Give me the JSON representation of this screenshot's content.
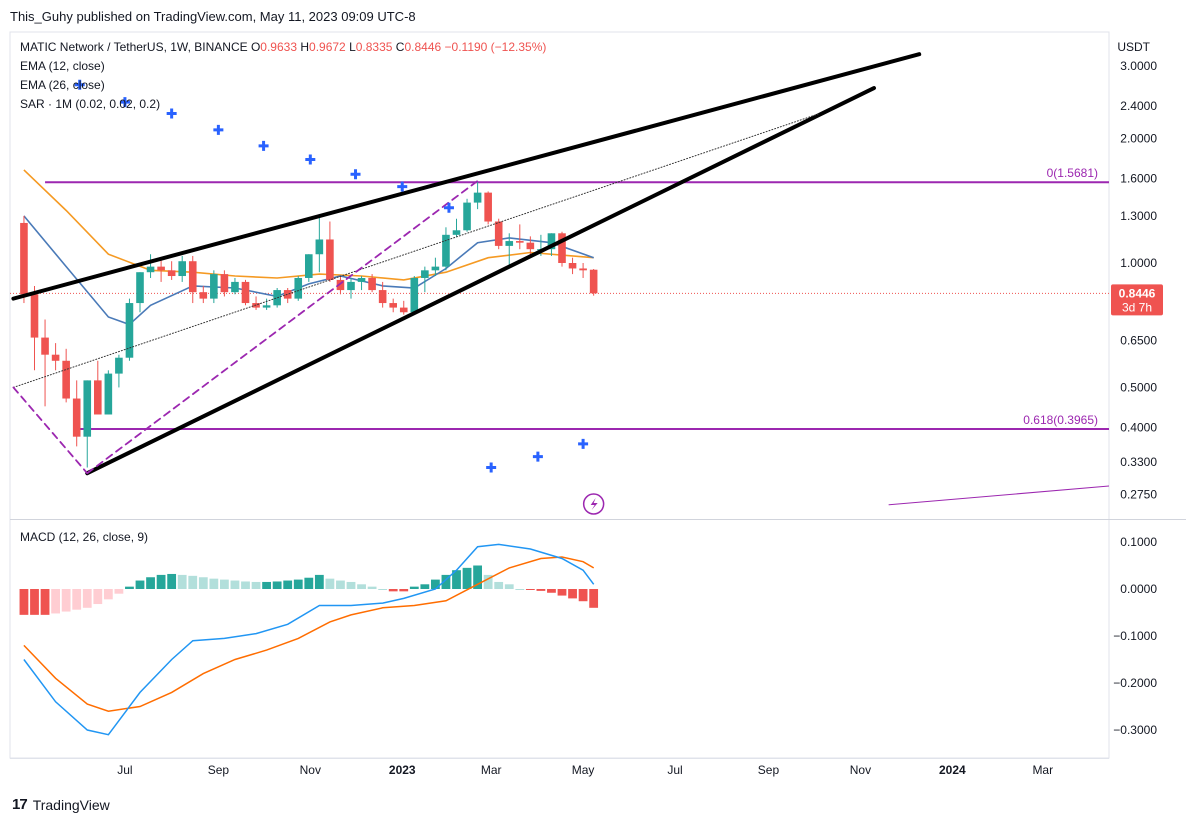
{
  "caption": "This_Guhy published on TradingView.com, May 11, 2023 09:09 UTC-8",
  "brand": {
    "logo_icon": "tradingview-logo-icon",
    "name": "TradingView"
  },
  "legend": {
    "symbol": "MATIC Network / TetherUS, 1W, BINANCE",
    "o_label": "O",
    "o": "0.9633",
    "h_label": "H",
    "h": "0.9672",
    "l_label": "L",
    "l": "0.8335",
    "c_label": "C",
    "c": "0.8446",
    "change": "−0.1190 (−12.35%)",
    "ema12": "EMA (12, close)",
    "ema26": "EMA (26, close)",
    "sar": "SAR · 1M (0.02, 0.02, 0.2)"
  },
  "macd_legend": "MACD (12, 26, close, 9)",
  "colors": {
    "up": "#26a69a",
    "down": "#ef5350",
    "ema12": "#4a7ab8",
    "ema26": "#f59a23",
    "sar": "#2962ff",
    "fib": "#9c27b0",
    "trend": "#000000",
    "macd_line": "#2196f3",
    "signal_line": "#ff6d00",
    "hist_up_strong": "#26a69a",
    "hist_up_weak": "#b2dfdb",
    "hist_down_strong": "#ef5350",
    "hist_down_weak": "#ffcdd2",
    "price_tag": "#ef5350"
  },
  "chart_data": {
    "type": "candlestick",
    "price_axis": {
      "unit": "USDT",
      "scale": "log",
      "ticks": [
        {
          "label": "3.0000",
          "v": 3.0
        },
        {
          "label": "2.4000",
          "v": 2.4
        },
        {
          "label": "2.0000",
          "v": 2.0
        },
        {
          "label": "1.6000",
          "v": 1.6
        },
        {
          "label": "1.3000",
          "v": 1.3
        },
        {
          "label": "1.0000",
          "v": 1.0
        },
        {
          "label": "0.6500",
          "v": 0.65
        },
        {
          "label": "0.5000",
          "v": 0.5
        },
        {
          "label": "0.4000",
          "v": 0.4
        },
        {
          "label": "0.3300",
          "v": 0.33
        },
        {
          "label": "0.2750",
          "v": 0.275
        }
      ]
    },
    "time_axis": {
      "ticks": [
        {
          "label": "Jul",
          "date": "2022-07-01"
        },
        {
          "label": "Sep",
          "date": "2022-09-01"
        },
        {
          "label": "Nov",
          "date": "2022-11-01"
        },
        {
          "label": "2023",
          "date": "2023-01-01",
          "bold": true
        },
        {
          "label": "Mar",
          "date": "2023-03-01"
        },
        {
          "label": "May",
          "date": "2023-05-01"
        },
        {
          "label": "Jul",
          "date": "2023-07-01"
        },
        {
          "label": "Sep",
          "date": "2023-09-01"
        },
        {
          "label": "Nov",
          "date": "2023-11-01"
        },
        {
          "label": "2024",
          "date": "2024-01-01",
          "bold": true
        },
        {
          "label": "Mar",
          "date": "2024-03-01"
        }
      ]
    },
    "candles": [
      [
        "2022-04-25",
        1.25,
        1.3,
        0.8,
        0.84
      ],
      [
        "2022-05-02",
        0.84,
        0.88,
        0.55,
        0.66
      ],
      [
        "2022-05-09",
        0.66,
        0.73,
        0.45,
        0.6
      ],
      [
        "2022-05-16",
        0.6,
        0.64,
        0.55,
        0.58
      ],
      [
        "2022-05-23",
        0.58,
        0.62,
        0.46,
        0.47
      ],
      [
        "2022-05-30",
        0.47,
        0.52,
        0.36,
        0.38
      ],
      [
        "2022-06-06",
        0.38,
        0.52,
        0.32,
        0.52
      ],
      [
        "2022-06-13",
        0.52,
        0.58,
        0.43,
        0.43
      ],
      [
        "2022-06-20",
        0.43,
        0.55,
        0.43,
        0.54
      ],
      [
        "2022-06-27",
        0.54,
        0.6,
        0.5,
        0.59
      ],
      [
        "2022-07-04",
        0.59,
        0.82,
        0.58,
        0.8
      ],
      [
        "2022-07-11",
        0.8,
        0.95,
        0.76,
        0.95
      ],
      [
        "2022-07-18",
        0.95,
        1.05,
        0.92,
        0.98
      ],
      [
        "2022-07-25",
        0.98,
        1.02,
        0.9,
        0.96
      ],
      [
        "2022-08-01",
        0.96,
        1.01,
        0.91,
        0.93
      ],
      [
        "2022-08-08",
        0.93,
        1.04,
        0.9,
        1.01
      ],
      [
        "2022-08-15",
        1.01,
        1.04,
        0.8,
        0.85
      ],
      [
        "2022-08-22",
        0.85,
        0.88,
        0.8,
        0.82
      ],
      [
        "2022-08-29",
        0.82,
        0.96,
        0.8,
        0.94
      ],
      [
        "2022-09-05",
        0.94,
        0.96,
        0.83,
        0.85
      ],
      [
        "2022-09-12",
        0.85,
        0.92,
        0.84,
        0.9
      ],
      [
        "2022-09-19",
        0.9,
        0.91,
        0.79,
        0.8
      ],
      [
        "2022-09-26",
        0.8,
        0.83,
        0.77,
        0.78
      ],
      [
        "2022-10-03",
        0.78,
        0.82,
        0.77,
        0.79
      ],
      [
        "2022-10-10",
        0.79,
        0.87,
        0.78,
        0.86
      ],
      [
        "2022-10-17",
        0.86,
        0.87,
        0.8,
        0.82
      ],
      [
        "2022-10-24",
        0.82,
        0.93,
        0.81,
        0.92
      ],
      [
        "2022-10-31",
        0.92,
        1.05,
        0.9,
        1.05
      ],
      [
        "2022-11-07",
        1.05,
        1.3,
        0.95,
        1.14
      ],
      [
        "2022-11-14",
        1.14,
        1.26,
        0.9,
        0.91
      ],
      [
        "2022-11-21",
        0.91,
        0.93,
        0.84,
        0.86
      ],
      [
        "2022-11-28",
        0.86,
        0.92,
        0.82,
        0.9
      ],
      [
        "2022-12-05",
        0.9,
        0.93,
        0.86,
        0.92
      ],
      [
        "2022-12-12",
        0.92,
        0.94,
        0.85,
        0.86
      ],
      [
        "2022-12-19",
        0.86,
        0.9,
        0.78,
        0.8
      ],
      [
        "2022-12-26",
        0.8,
        0.82,
        0.76,
        0.78
      ],
      [
        "2023-01-02",
        0.78,
        0.81,
        0.75,
        0.76
      ],
      [
        "2023-01-09",
        0.76,
        0.93,
        0.75,
        0.92
      ],
      [
        "2023-01-16",
        0.92,
        0.98,
        0.85,
        0.96
      ],
      [
        "2023-01-23",
        0.96,
        1.03,
        0.93,
        0.98
      ],
      [
        "2023-01-30",
        0.98,
        1.22,
        0.96,
        1.17
      ],
      [
        "2023-02-06",
        1.17,
        1.28,
        1.16,
        1.2
      ],
      [
        "2023-02-13",
        1.2,
        1.43,
        1.19,
        1.4
      ],
      [
        "2023-02-20",
        1.4,
        1.57,
        1.35,
        1.48
      ],
      [
        "2023-02-27",
        1.48,
        1.49,
        1.24,
        1.26
      ],
      [
        "2023-03-06",
        1.26,
        1.28,
        1.08,
        1.1
      ],
      [
        "2023-03-13",
        1.1,
        1.18,
        0.97,
        1.13
      ],
      [
        "2023-03-20",
        1.13,
        1.24,
        1.08,
        1.12
      ],
      [
        "2023-03-27",
        1.12,
        1.16,
        1.04,
        1.08
      ],
      [
        "2023-04-03",
        1.08,
        1.17,
        1.04,
        1.08
      ],
      [
        "2023-04-10",
        1.08,
        1.18,
        1.04,
        1.18
      ],
      [
        "2023-04-17",
        1.18,
        1.19,
        0.98,
        1.0
      ],
      [
        "2023-04-24",
        1.0,
        1.03,
        0.94,
        0.97
      ],
      [
        "2023-05-01",
        0.97,
        1.0,
        0.92,
        0.96
      ],
      [
        "2023-05-08",
        0.9633,
        0.9672,
        0.8335,
        0.8446
      ]
    ],
    "ema12": [
      [
        "2022-04-25",
        1.3
      ],
      [
        "2022-05-23",
        0.98
      ],
      [
        "2022-06-20",
        0.74
      ],
      [
        "2022-07-04",
        0.71
      ],
      [
        "2022-07-18",
        0.79
      ],
      [
        "2022-08-15",
        0.88
      ],
      [
        "2022-09-12",
        0.87
      ],
      [
        "2022-10-10",
        0.83
      ],
      [
        "2022-10-31",
        0.89
      ],
      [
        "2022-11-21",
        0.93
      ],
      [
        "2022-12-19",
        0.88
      ],
      [
        "2023-01-09",
        0.87
      ],
      [
        "2023-01-30",
        0.97
      ],
      [
        "2023-02-20",
        1.12
      ],
      [
        "2023-03-13",
        1.15
      ],
      [
        "2023-04-10",
        1.12
      ],
      [
        "2023-05-08",
        1.03
      ]
    ],
    "ema26": [
      [
        "2022-04-25",
        1.68
      ],
      [
        "2022-05-23",
        1.34
      ],
      [
        "2022-06-20",
        1.05
      ],
      [
        "2022-07-18",
        0.96
      ],
      [
        "2022-08-15",
        0.95
      ],
      [
        "2022-09-12",
        0.93
      ],
      [
        "2022-10-10",
        0.92
      ],
      [
        "2022-11-07",
        0.94
      ],
      [
        "2022-12-05",
        0.93
      ],
      [
        "2023-01-02",
        0.91
      ],
      [
        "2023-01-30",
        0.95
      ],
      [
        "2023-02-27",
        1.03
      ],
      [
        "2023-03-27",
        1.06
      ],
      [
        "2023-05-08",
        1.03
      ]
    ],
    "sar": [
      [
        "2022-06-01",
        2.7
      ],
      [
        "2022-07-01",
        2.45
      ],
      [
        "2022-08-01",
        2.3
      ],
      [
        "2022-09-01",
        2.1
      ],
      [
        "2022-10-01",
        1.92
      ],
      [
        "2022-11-01",
        1.78
      ],
      [
        "2022-12-01",
        1.64
      ],
      [
        "2023-01-01",
        1.53
      ],
      [
        "2023-02-01",
        1.36
      ],
      [
        "2023-03-01",
        0.32
      ],
      [
        "2023-04-01",
        0.34
      ],
      [
        "2023-05-01",
        0.365
      ]
    ],
    "fib_levels": [
      {
        "label": "0(1.5681)",
        "v": 1.5681,
        "from": "2022-05-09"
      },
      {
        "label": "0.618(0.3965)",
        "v": 0.3965,
        "from": "2022-05-30"
      }
    ],
    "trendlines": [
      {
        "style": "solid-thick",
        "from": [
          "2022-04-18",
          0.82
        ],
        "to": [
          "2023-12-10",
          3.2
        ]
      },
      {
        "style": "solid-thick",
        "from": [
          "2022-06-06",
          0.31
        ],
        "to": [
          "2023-11-10",
          2.65
        ]
      },
      {
        "style": "dotted",
        "from": [
          "2022-04-18",
          0.5
        ],
        "to": [
          "2023-10-05",
          2.3
        ]
      },
      {
        "style": "dashed-purple",
        "from": [
          "2022-04-18",
          0.5
        ],
        "to": [
          "2022-06-06",
          0.31
        ]
      },
      {
        "style": "dashed-purple",
        "from": [
          "2022-06-06",
          0.31
        ],
        "to": [
          "2023-02-20",
          1.58
        ]
      },
      {
        "style": "thin-purple",
        "from": [
          "2023-11-20",
          0.26
        ],
        "to": [
          "2024-04-20",
          0.29
        ]
      }
    ],
    "price_tag": {
      "value": "0.8446",
      "countdown": "3d 7h",
      "v": 0.8446
    },
    "macd": {
      "axis_ticks": [
        {
          "label": "0.1000",
          "v": 0.1
        },
        {
          "label": "0.0000",
          "v": 0.0
        },
        {
          "label": "−0.1000",
          "v": -0.1
        },
        {
          "label": "−0.2000",
          "v": -0.2
        },
        {
          "label": "−0.3000",
          "v": -0.3
        }
      ],
      "histogram": [
        -0.055,
        -0.055,
        -0.055,
        -0.052,
        -0.048,
        -0.044,
        -0.04,
        -0.032,
        -0.022,
        -0.01,
        0.005,
        0.018,
        0.025,
        0.03,
        0.032,
        0.03,
        0.028,
        0.025,
        0.022,
        0.02,
        0.018,
        0.016,
        0.015,
        0.015,
        0.016,
        0.018,
        0.02,
        0.024,
        0.03,
        0.022,
        0.018,
        0.015,
        0.01,
        0.005,
        0.0,
        -0.005,
        -0.005,
        0.005,
        0.01,
        0.02,
        0.03,
        0.04,
        0.045,
        0.05,
        0.03,
        0.015,
        0.01,
        0.0,
        -0.002,
        -0.004,
        -0.008,
        -0.014,
        -0.02,
        -0.026,
        -0.04
      ],
      "macd_line": [
        [
          0,
          -0.15
        ],
        [
          3,
          -0.24
        ],
        [
          6,
          -0.3
        ],
        [
          8,
          -0.31
        ],
        [
          11,
          -0.22
        ],
        [
          14,
          -0.15
        ],
        [
          16,
          -0.11
        ],
        [
          19,
          -0.105
        ],
        [
          22,
          -0.095
        ],
        [
          25,
          -0.075
        ],
        [
          28,
          -0.035
        ],
        [
          31,
          -0.035
        ],
        [
          34,
          -0.03
        ],
        [
          36,
          -0.02
        ],
        [
          39,
          0.0
        ],
        [
          41,
          0.04
        ],
        [
          43,
          0.09
        ],
        [
          45,
          0.095
        ],
        [
          48,
          0.085
        ],
        [
          51,
          0.065
        ],
        [
          53,
          0.04
        ],
        [
          54,
          0.01
        ]
      ],
      "signal_line": [
        [
          0,
          -0.12
        ],
        [
          3,
          -0.19
        ],
        [
          6,
          -0.245
        ],
        [
          8,
          -0.26
        ],
        [
          11,
          -0.25
        ],
        [
          14,
          -0.22
        ],
        [
          17,
          -0.18
        ],
        [
          20,
          -0.15
        ],
        [
          23,
          -0.13
        ],
        [
          26,
          -0.105
        ],
        [
          29,
          -0.07
        ],
        [
          31,
          -0.055
        ],
        [
          34,
          -0.04
        ],
        [
          37,
          -0.035
        ],
        [
          40,
          -0.025
        ],
        [
          43,
          0.01
        ],
        [
          46,
          0.045
        ],
        [
          49,
          0.065
        ],
        [
          51,
          0.068
        ],
        [
          53,
          0.058
        ],
        [
          54,
          0.045
        ]
      ]
    }
  }
}
